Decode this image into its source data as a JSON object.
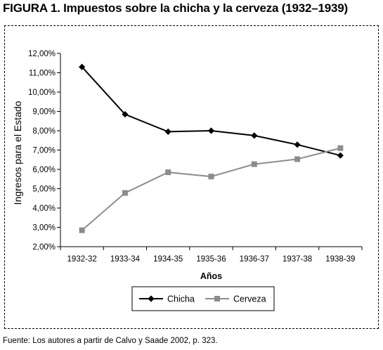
{
  "figure": {
    "title": "FIGURA 1. Impuestos sobre la chicha y la cerveza (1932–1939)",
    "source": "Fuente: Los autores a partir de Calvo y Saade 2002, p. 323."
  },
  "chart_data": {
    "type": "line",
    "categories": [
      "1932-32",
      "1933-34",
      "1934-35",
      "1935-36",
      "1936-37",
      "1937-38",
      "1938-39"
    ],
    "series": [
      {
        "name": "Chicha",
        "values": [
          11.3,
          8.85,
          7.95,
          8.0,
          7.75,
          7.28,
          6.72
        ],
        "color": "#000000",
        "marker": "diamond"
      },
      {
        "name": "Cerveza",
        "values": [
          2.85,
          4.78,
          5.85,
          5.63,
          6.27,
          6.53,
          7.1
        ],
        "color": "#8c8c8c",
        "marker": "square"
      }
    ],
    "xlabel": "Años",
    "ylabel": "Ingresos para el Estado",
    "ylim": [
      2,
      12
    ],
    "yticks": [
      "2,00%",
      "3,00%",
      "4,00%",
      "5,00%",
      "6,00%",
      "7,00%",
      "8,00%",
      "9,00%",
      "10,00%",
      "11,00%",
      "12,00%"
    ],
    "grid": false,
    "legend": "bottom"
  }
}
